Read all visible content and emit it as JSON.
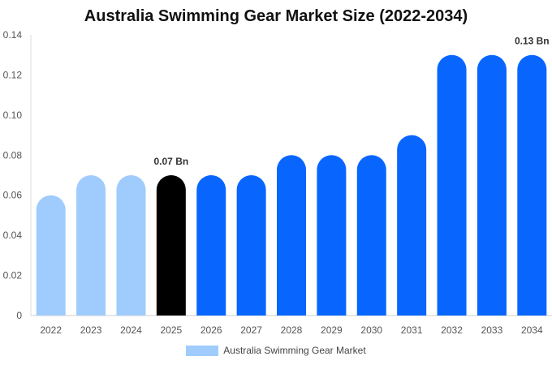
{
  "chart_data": {
    "type": "bar",
    "title": "Australia Swimming Gear Market Size (2022-2034)",
    "categories": [
      "2022",
      "2023",
      "2024",
      "2025",
      "2026",
      "2027",
      "2028",
      "2029",
      "2030",
      "2031",
      "2032",
      "2033",
      "2034"
    ],
    "series": [
      {
        "name": "Australia Swimming Gear Market",
        "values": [
          0.06,
          0.07,
          0.07,
          0.07,
          0.07,
          0.07,
          0.08,
          0.08,
          0.08,
          0.09,
          0.13,
          0.13,
          0.13
        ]
      }
    ],
    "bar_colors": [
      "#a0ccfd",
      "#a0ccfd",
      "#a0ccfd",
      "#000000",
      "#0866ff",
      "#0866ff",
      "#0866ff",
      "#0866ff",
      "#0866ff",
      "#0866ff",
      "#0866ff",
      "#0866ff",
      "#0866ff"
    ],
    "legend_color": "#a0ccfd",
    "y_ticks": [
      "0",
      "0.02",
      "0.04",
      "0.06",
      "0.08",
      "0.10",
      "0.12",
      "0.14"
    ],
    "ylim": [
      0,
      0.14
    ],
    "grid": false,
    "legend_position": "bottom",
    "annotations": [
      {
        "category": "2025",
        "text": "0.07 Bn"
      },
      {
        "category": "2034",
        "text": "0.13 Bn"
      }
    ]
  }
}
